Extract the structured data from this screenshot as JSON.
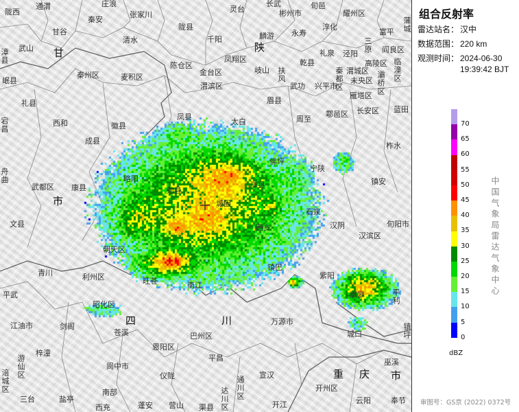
{
  "panel": {
    "title": "组合反射率",
    "station_label": "雷达站名：",
    "station": "汉中",
    "range_label": "数据范围：",
    "range": "220 km",
    "time_label": "观测时间：",
    "date": "2024-06-30",
    "time": "19:39:42 BJT",
    "legend_ticks": [
      "70",
      "65",
      "60",
      "55",
      "50",
      "45",
      "40",
      "35",
      "30",
      "25",
      "20",
      "15",
      "10",
      "5",
      "0"
    ],
    "legend_colors": [
      "#b39cec",
      "#9400aa",
      "#ff00ff",
      "#c00000",
      "#d40000",
      "#ff0000",
      "#ff9000",
      "#e8c000",
      "#ffff00",
      "#008a00",
      "#00d800",
      "#66f033",
      "#66e6ea",
      "#44a0ee",
      "#0000ff"
    ],
    "unit": "dBZ",
    "agency": "中国气象局雷达气象中心",
    "approval": "审图号：GS京 (2022) 0372号"
  },
  "map": {
    "provinces": [
      "甘",
      "陕",
      "市",
      "四",
      "川",
      "重",
      "庆",
      "市"
    ],
    "labels": [
      "陇西",
      "通渭",
      "庄浪",
      "秦安",
      "张家川",
      "陇县",
      "甘谷",
      "武山",
      "清水",
      "漳县",
      "岷县",
      "秦州区",
      "麦积区",
      "陈仓区",
      "礼县",
      "西和",
      "徽县",
      "凤县",
      "宕昌",
      "灵台",
      "长武",
      "彬州市",
      "旬邑",
      "耀州区",
      "千阳",
      "麟游",
      "永寿",
      "淳化",
      "富平",
      "蒲城",
      "三原",
      "凤翔区",
      "乾县",
      "礼泉",
      "泾阳",
      "阎良区",
      "岐山",
      "扶风",
      "高陵区",
      "临潼区",
      "秦都区",
      "渭城区",
      "未央区",
      "灞桥区",
      "武功",
      "兴平市",
      "雁塔区",
      "眉县",
      "鄠邑区",
      "长安区",
      "蓝田",
      "周至",
      "太白",
      "金台区",
      "渭滨区",
      "成县",
      "舟曲",
      "武都区",
      "康县",
      "略阳",
      "勉县",
      "文县",
      "朝天区",
      "佛坪",
      "宁陕",
      "洋县",
      "城固",
      "石泉",
      "汉阴",
      "西乡",
      "镇巴",
      "柞水",
      "镇安",
      "旬阳市",
      "汉滨区",
      "紫阳",
      "岚皋",
      "青川",
      "平武",
      "利州区",
      "旺苍",
      "南江",
      "昭化区",
      "苍溪",
      "江油市",
      "剑阁",
      "巴州区",
      "恩阳区",
      "梓潼",
      "游仙区",
      "阆中市",
      "仪陇",
      "涪城区",
      "三台",
      "盐亭",
      "南部",
      "西充",
      "蓬安",
      "营山",
      "渠县",
      "万源市",
      "平利",
      "镇坪",
      "城口",
      "平昌",
      "宣汉",
      "通川区",
      "达川区",
      "巫溪",
      "开州区",
      "云阳",
      "奉节",
      "开江"
    ]
  }
}
